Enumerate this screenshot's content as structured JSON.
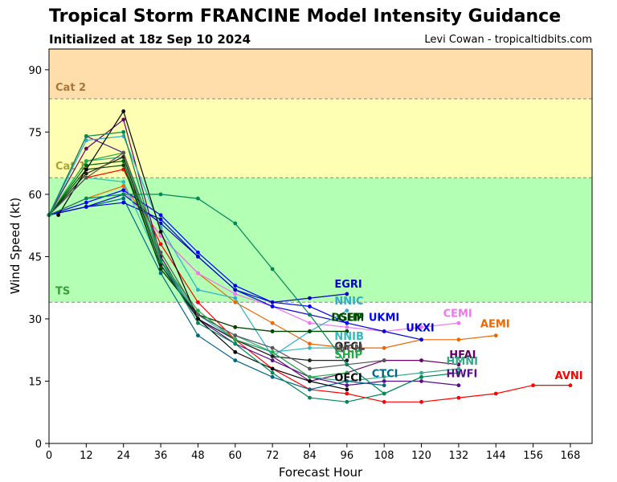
{
  "header": {
    "title": "Tropical Storm FRANCINE Model Intensity Guidance",
    "subtitle": "Initialized at 18z Sep 10 2024",
    "credit": "Levi Cowan - tropicaltidbits.com"
  },
  "chart_data": {
    "type": "line",
    "title": "Tropical Storm FRANCINE Model Intensity Guidance",
    "subtitle": "Initialized at 18z Sep 10 2024",
    "xlabel": "Forecast Hour",
    "ylabel": "Wind Speed (kt)",
    "xlim": [
      0,
      175
    ],
    "ylim": [
      0,
      95
    ],
    "xticks": [
      0,
      12,
      24,
      36,
      48,
      60,
      72,
      84,
      96,
      108,
      120,
      132,
      144,
      156,
      168
    ],
    "yticks": [
      0,
      15,
      30,
      45,
      60,
      75,
      90
    ],
    "bands": [
      {
        "label": "TS",
        "from": 34,
        "to": 64,
        "color": "#b3ffb3"
      },
      {
        "label": "Cat 1",
        "from": 64,
        "to": 83,
        "color": "#ffffb3"
      },
      {
        "label": "Cat 2",
        "from": 83,
        "to": 95,
        "color": "#ffdeab"
      }
    ],
    "band_label_colors": {
      "TS": "#3a9a3a",
      "Cat 1": "#a9a238",
      "Cat 2": "#a8783a"
    },
    "series": [
      {
        "name": "AVNI",
        "color": "#ff0000",
        "x": [
          0,
          12,
          24,
          36,
          48,
          60,
          72,
          84,
          96,
          108,
          120,
          132,
          144,
          156,
          168
        ],
        "y": [
          55,
          64,
          66,
          48,
          34,
          25,
          18,
          13,
          12,
          10,
          10,
          11,
          12,
          14,
          14
        ]
      },
      {
        "name": "AEMI",
        "color": "#ee6600",
        "x": [
          0,
          12,
          24,
          36,
          48,
          60,
          72,
          84,
          96,
          108,
          120,
          132,
          144
        ],
        "y": [
          55,
          59,
          62,
          50,
          41,
          34,
          29,
          24,
          23,
          23,
          25,
          25,
          26
        ]
      },
      {
        "name": "CEMI",
        "color": "#ee77ee",
        "x": [
          0,
          12,
          24,
          36,
          48,
          60,
          72,
          84,
          96,
          108,
          120,
          132
        ],
        "y": [
          55,
          58,
          61,
          50,
          41,
          36,
          33,
          29,
          28,
          27,
          28,
          29
        ]
      },
      {
        "name": "HFAI",
        "color": "#660066",
        "x": [
          0,
          12,
          24,
          36,
          48,
          60,
          72,
          84,
          96,
          108,
          120,
          132
        ],
        "y": [
          55,
          71,
          78,
          45,
          30,
          25,
          21,
          15,
          17,
          20,
          20,
          19
        ]
      },
      {
        "name": "HWFI",
        "color": "#551188",
        "x": [
          0,
          12,
          24,
          36,
          48,
          60,
          72,
          84,
          96,
          108,
          120,
          132
        ],
        "y": [
          55,
          74,
          70,
          44,
          30,
          24,
          20,
          16,
          14,
          15,
          15,
          14
        ]
      },
      {
        "name": "HMNI",
        "color": "#33aa88",
        "x": [
          0,
          12,
          24,
          36,
          48,
          60,
          72,
          84,
          96,
          108,
          120,
          132
        ],
        "y": [
          55,
          68,
          69,
          44,
          31,
          26,
          22,
          16,
          15,
          16,
          17,
          18
        ]
      },
      {
        "name": "CTCI",
        "color": "#006688",
        "x": [
          0,
          12,
          24,
          36,
          48,
          60,
          72,
          84,
          96,
          108
        ],
        "y": [
          55,
          57,
          59,
          41,
          26,
          20,
          16,
          13,
          15,
          14
        ]
      },
      {
        "name": "UKXI",
        "color": "#0000dd",
        "x": [
          0,
          12,
          24,
          36,
          48,
          60,
          72,
          84,
          96,
          108,
          120
        ],
        "y": [
          55,
          57,
          58,
          54,
          45,
          37,
          33,
          31,
          29,
          27,
          25
        ]
      },
      {
        "name": "UKMI",
        "color": "#0000ff",
        "x": [
          0,
          12,
          24,
          36,
          48,
          60,
          72,
          84,
          96
        ],
        "y": [
          55,
          58,
          61,
          55,
          46,
          38,
          34,
          33,
          29
        ]
      },
      {
        "name": "EGRI",
        "color": "#0000cc",
        "x": [
          0,
          12,
          24,
          36,
          48,
          60,
          72,
          84,
          96
        ],
        "y": [
          55,
          57,
          60,
          53,
          45,
          37,
          34,
          35,
          36
        ]
      },
      {
        "name": "NNIC",
        "color": "#33aacc",
        "x": [
          0,
          12,
          24,
          36,
          48,
          60,
          72,
          84,
          96
        ],
        "y": [
          55,
          73,
          74,
          52,
          37,
          35,
          21,
          27,
          32
        ]
      },
      {
        "name": "NNIB",
        "color": "#33bbbb",
        "x": [
          0,
          12,
          24,
          36,
          48,
          60,
          72,
          84,
          96
        ],
        "y": [
          55,
          64,
          63,
          43,
          31,
          25,
          22,
          23,
          23
        ]
      },
      {
        "name": "DSHP",
        "color": "#006600",
        "x": [
          0,
          12,
          24,
          36,
          48,
          60,
          72,
          84,
          96
        ],
        "y": [
          55,
          67,
          68,
          42,
          31,
          28,
          27,
          27,
          27
        ]
      },
      {
        "name": "LGEM",
        "color": "#004400",
        "x": [
          0,
          12,
          24,
          36,
          48,
          60,
          72,
          84,
          96
        ],
        "y": [
          55,
          66,
          67,
          42,
          31,
          28,
          27,
          27,
          27
        ]
      },
      {
        "name": "OFCL",
        "color": "#222222",
        "x": [
          0,
          12,
          24,
          36,
          48,
          60,
          72,
          84,
          96
        ],
        "y": [
          55,
          65,
          69,
          43,
          30,
          25,
          21,
          20,
          20
        ]
      },
      {
        "name": "SHIP",
        "color": "#22aa44",
        "x": [
          0,
          12,
          24,
          36,
          48,
          60,
          72,
          84,
          96
        ],
        "y": [
          55,
          68,
          70,
          44,
          32,
          25,
          22,
          16,
          17
        ]
      },
      {
        "name": "OFCI",
        "color": "#000000",
        "x": [
          3,
          12,
          24,
          36,
          48,
          60,
          72,
          84,
          96
        ],
        "y": [
          55,
          66,
          80,
          51,
          30,
          22,
          18,
          15,
          13
        ]
      },
      {
        "name": "IVCN",
        "color": "#555555",
        "x": [
          0,
          12,
          24,
          36,
          48,
          60,
          72,
          84,
          96,
          108
        ],
        "y": [
          55,
          64,
          70,
          46,
          31,
          26,
          23,
          18,
          19,
          20
        ]
      },
      {
        "name": "",
        "color": "#008855",
        "x": [
          0,
          12,
          24,
          36,
          48,
          60,
          72,
          84,
          96,
          108,
          120
        ],
        "y": [
          55,
          59,
          60,
          60,
          59,
          53,
          42,
          31,
          19,
          12,
          16
        ]
      },
      {
        "name": "",
        "color": "#008855",
        "x": [
          0,
          12,
          24,
          36,
          48,
          60,
          72,
          84,
          96,
          108,
          120,
          132
        ],
        "y": [
          55,
          74,
          75,
          44,
          29,
          24,
          17,
          11,
          10,
          12,
          16,
          17
        ]
      }
    ],
    "labels": [
      {
        "text": "AVNI",
        "x": 163,
        "y": 15.5,
        "color": "#ff0000"
      },
      {
        "text": "AEMI",
        "x": 139,
        "y": 28,
        "color": "#ee6600"
      },
      {
        "text": "CEMI",
        "x": 127,
        "y": 30.5,
        "color": "#ee77ee"
      },
      {
        "text": "HFAI",
        "x": 129,
        "y": 20.5,
        "color": "#660066"
      },
      {
        "text": "HMNI",
        "x": 128,
        "y": 19,
        "color": "#33aa88"
      },
      {
        "text": "HWFI",
        "x": 128,
        "y": 16,
        "color": "#551188"
      },
      {
        "text": "CTCI",
        "x": 104,
        "y": 16,
        "color": "#006688"
      },
      {
        "text": "UKXI",
        "x": 115,
        "y": 27,
        "color": "#0000dd"
      },
      {
        "text": "UKMI",
        "x": 103,
        "y": 29.5,
        "color": "#0000ff"
      },
      {
        "text": "EGRI",
        "x": 92,
        "y": 37.5,
        "color": "#0000cc"
      },
      {
        "text": "NNIC",
        "x": 92,
        "y": 33.5,
        "color": "#33aacc"
      },
      {
        "text": "NNIB",
        "x": 92,
        "y": 25,
        "color": "#33bbbb"
      },
      {
        "text": "DSHP",
        "x": 91,
        "y": 29.5,
        "color": "#006600"
      },
      {
        "text": "LGEM",
        "x": 91,
        "y": 29.5,
        "color": "#004400"
      },
      {
        "text": "OFCL",
        "x": 92,
        "y": 22.5,
        "color": "#222222"
      },
      {
        "text": "IVCN",
        "x": 92,
        "y": 22,
        "color": "#555555"
      },
      {
        "text": "SHIP",
        "x": 92,
        "y": 20.5,
        "color": "#22aa44"
      },
      {
        "text": "OFCI",
        "x": 92,
        "y": 15,
        "color": "#000000"
      }
    ]
  }
}
